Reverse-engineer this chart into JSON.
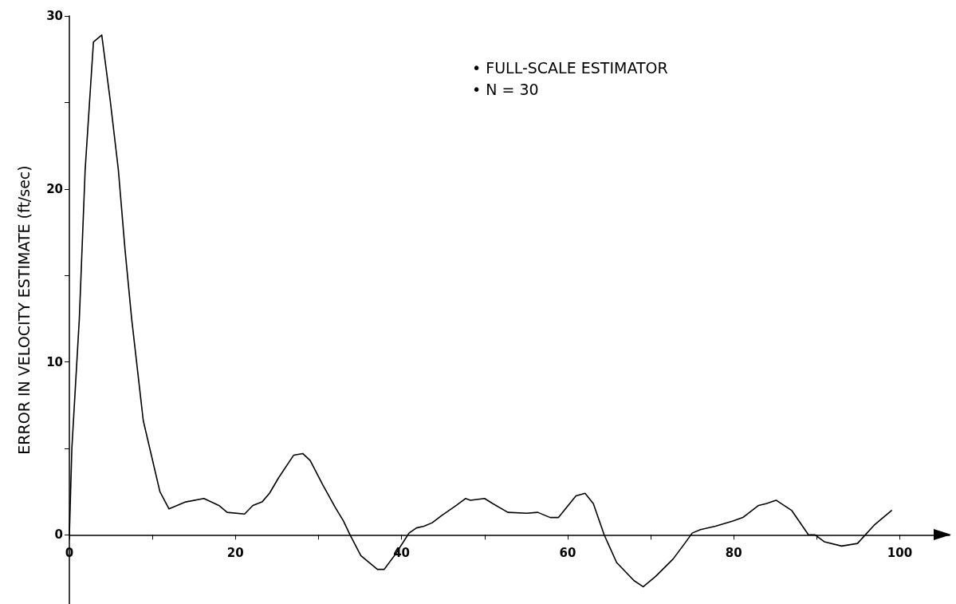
{
  "chart_data": {
    "type": "line",
    "ylabel": "ERROR IN VELOCITY ESTIMATE (ft/sec)",
    "annotations": [
      "• FULL-SCALE ESTIMATOR",
      "• N = 30"
    ],
    "xlim": [
      0,
      106
    ],
    "xticks": [
      0,
      {
        "value": 10,
        "label": null
      },
      20,
      {
        "value": 30,
        "label": null
      },
      40,
      {
        "value": 50,
        "label": null
      },
      60,
      {
        "value": 70,
        "label": null
      },
      80,
      {
        "value": 90,
        "label": null
      },
      100
    ],
    "ylim": [
      -4,
      30
    ],
    "yticks": [
      0,
      {
        "value": 5,
        "label": null
      },
      10,
      {
        "value": 15,
        "label": null
      },
      20,
      {
        "value": 25,
        "label": null
      },
      30
    ],
    "grid": false,
    "marker": "none",
    "line_style": "solid",
    "series": [
      {
        "color": "#000000",
        "x": [
          0,
          0.3,
          1.2,
          1.9,
          2.9,
          3.9,
          4.9,
          5.9,
          6.7,
          7.5,
          8.9,
          10.9,
          12.0,
          14.0,
          16.2,
          18.0,
          19.0,
          21.1,
          22.1,
          23.2,
          24.1,
          25.2,
          27.0,
          28.1,
          29.0,
          30.5,
          32.0,
          33.0,
          33.8,
          35.1,
          37.1,
          37.9,
          39.3,
          40.9,
          41.8,
          42.7,
          43.7,
          44.8,
          46.6,
          47.7,
          48.3,
          50.0,
          51.0,
          52.8,
          55.1,
          56.4,
          57.9,
          58.9,
          61.0,
          62.1,
          63.1,
          64.4,
          65.9,
          68.0,
          69.1,
          70.6,
          72.7,
          74.1,
          75.0,
          76.0,
          77.8,
          79.9,
          81.1,
          83.0,
          83.9,
          85.1,
          87.0,
          89.0,
          89.8,
          90.9,
          93.0,
          94.9,
          97.0,
          99.0
        ],
        "values": [
          0,
          5,
          12.5,
          21.1,
          28.5,
          28.9,
          25.2,
          21.1,
          16.5,
          12.5,
          6.6,
          2.5,
          1.5,
          1.9,
          2.1,
          1.7,
          1.3,
          1.2,
          1.7,
          1.9,
          2.4,
          3.3,
          4.6,
          4.7,
          4.3,
          2.9,
          1.6,
          0.8,
          0,
          -1.2,
          -2.0,
          -2.0,
          -1.1,
          0.1,
          0.4,
          0.5,
          0.7,
          1.1,
          1.7,
          2.1,
          2.0,
          2.1,
          1.8,
          1.3,
          1.25,
          1.3,
          1.0,
          1.0,
          2.25,
          2.4,
          1.8,
          0,
          -1.6,
          -2.65,
          -3.0,
          -2.4,
          -1.4,
          -0.5,
          0.1,
          0.3,
          0.5,
          0.8,
          1.0,
          1.7,
          1.8,
          2.0,
          1.4,
          0,
          0,
          -0.4,
          -0.65,
          -0.5,
          0.6,
          1.4
        ]
      }
    ]
  }
}
